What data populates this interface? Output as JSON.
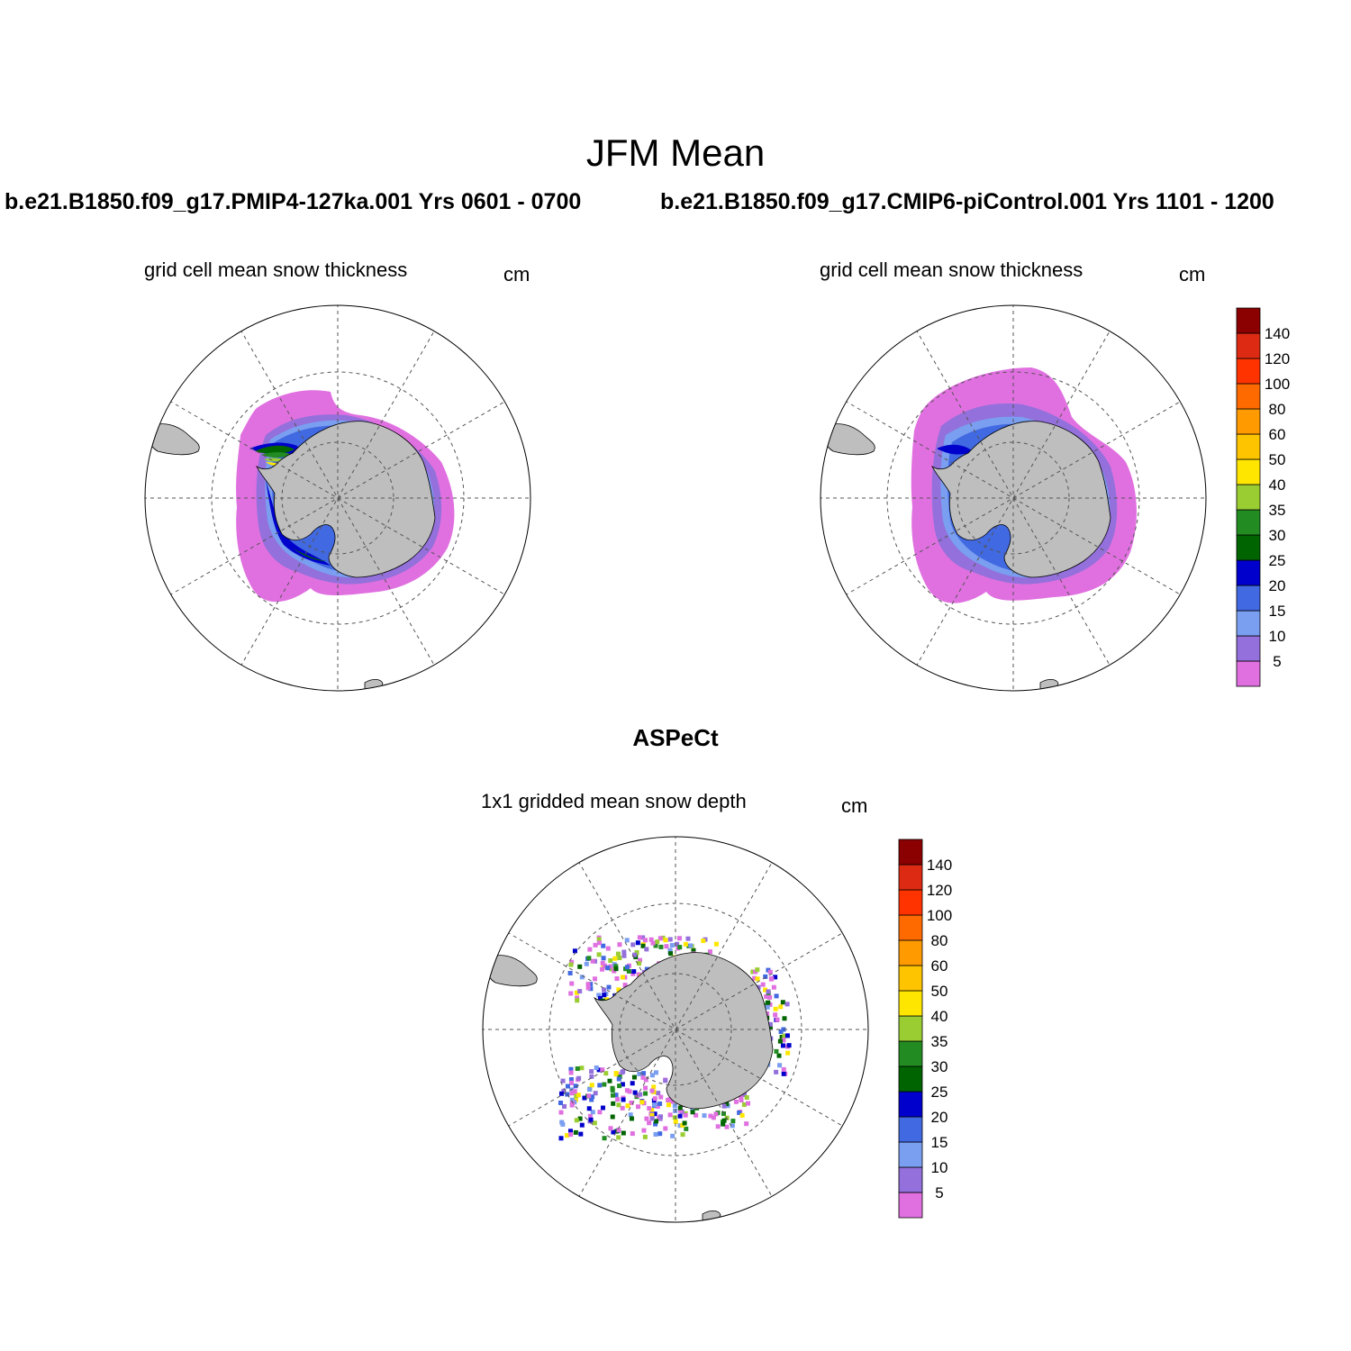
{
  "figure": {
    "title": "JFM Mean",
    "left_case": "b.e21.B1850.f09_g17.PMIP4-127ka.001  Yrs 0601 - 0700",
    "right_case": "b.e21.B1850.f09_g17.CMIP6-piControl.001  Yrs 1101 - 1200",
    "bottom_title": "ASPeCt"
  },
  "panels": [
    {
      "variable": "grid cell mean snow thickness",
      "units": "cm"
    },
    {
      "variable": "grid cell mean snow thickness",
      "units": "cm"
    },
    {
      "variable": "1x1 gridded mean snow depth",
      "units": "cm"
    }
  ],
  "colorbar": {
    "levels": [
      "5",
      "10",
      "15",
      "20",
      "25",
      "30",
      "35",
      "40",
      "50",
      "60",
      "80",
      "100",
      "120",
      "140"
    ],
    "colors": [
      "#e070e0",
      "#9370db",
      "#7a9ef0",
      "#4169e1",
      "#0000cd",
      "#006400",
      "#228b22",
      "#9acd32",
      "#ffe600",
      "#ffc400",
      "#ff9a00",
      "#ff6a00",
      "#ff3300",
      "#dd2a12",
      "#8b0000"
    ]
  },
  "map_colors": {
    "land": "#bebebe",
    "ocean": "#ffffff",
    "grid": "#555555"
  }
}
